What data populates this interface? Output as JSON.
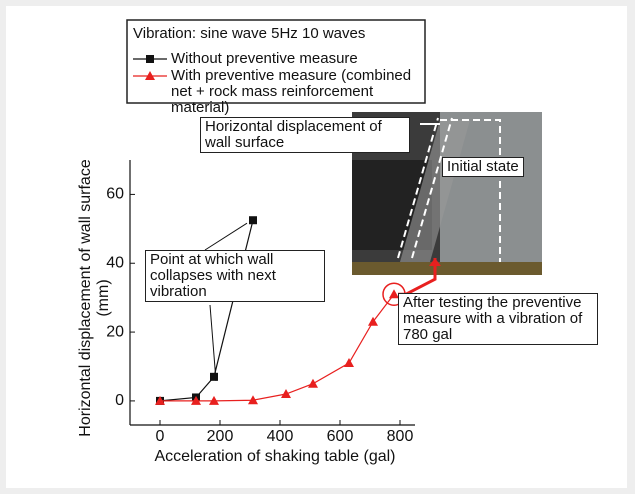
{
  "chart_data": {
    "type": "line",
    "legend_title": "Vibration: sine wave 5Hz 10 waves",
    "x_label": "Acceleration of shaking table (gal)",
    "y_label": "Horizontal displacement of wall surface (mm)",
    "series": [
      {
        "name": "Without preventive measure",
        "color": "#111111",
        "marker": "square",
        "x": [
          0,
          120,
          180,
          310
        ],
        "values": [
          0,
          1,
          7,
          52.5
        ]
      },
      {
        "name": "With preventive measure (combined net + rock mass reinforcement material)",
        "color": "#e8201f",
        "marker": "triangle",
        "x": [
          0,
          120,
          180,
          310,
          420,
          510,
          630,
          710,
          780
        ],
        "values": [
          0,
          0,
          0,
          0.2,
          2,
          5,
          11,
          23,
          31
        ]
      }
    ],
    "xlim": [
      -100,
      850
    ],
    "ylim": [
      -7,
      70
    ],
    "xticks": [
      0,
      200,
      400,
      600,
      800
    ],
    "yticks": [
      0,
      20,
      40,
      60
    ],
    "annotations": [
      "Horizontal displacement of wall surface",
      "Initial state",
      "Point at which wall collapses with next vibration",
      "After testing the preventive measure with a vibration of 780 gal"
    ]
  }
}
